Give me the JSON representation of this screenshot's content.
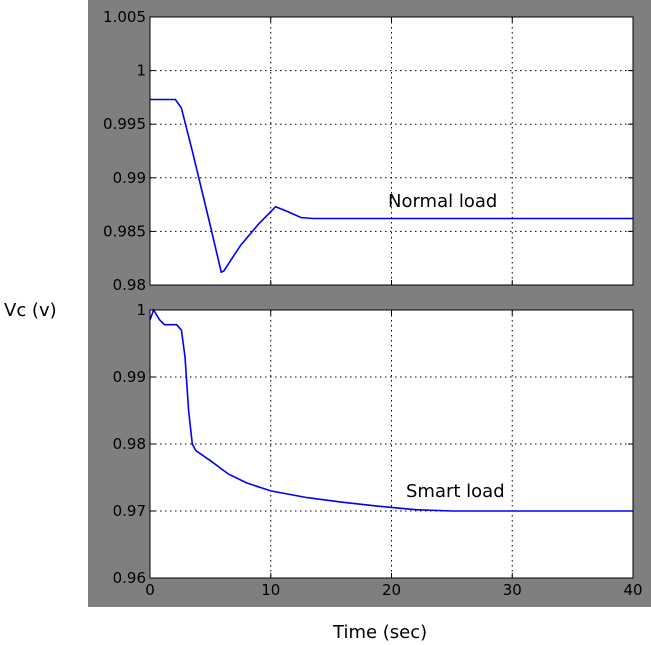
{
  "chart_data": {
    "type": "line",
    "grid": true,
    "ylabel": "Vc (v)",
    "xlabel": "Time (sec)",
    "line_color": "#0000ff",
    "panel_background": "#7f7f7f",
    "subplots": [
      {
        "name": "top",
        "annotation": "Normal load",
        "xlim": [
          0,
          40
        ],
        "ylim": [
          0.98,
          1.005
        ],
        "x_ticks": [
          0,
          10,
          20,
          30,
          40
        ],
        "y_ticks": [
          0.98,
          0.985,
          0.99,
          0.995,
          1,
          1.005
        ],
        "y_tick_labels": [
          "0.98",
          "0.985",
          "0.99",
          "0.995",
          "1",
          "1.005"
        ],
        "series": [
          {
            "x": [
              0,
              2.1,
              2.6,
              3.5,
              5.0,
              5.9,
              6.1,
              7.5,
              9.0,
              10.4,
              11.5,
              12.5,
              13.5,
              20,
              30,
              40
            ],
            "y": [
              0.9973,
              0.9973,
              0.9965,
              0.9925,
              0.9855,
              0.9812,
              0.9813,
              0.9837,
              0.9857,
              0.9873,
              0.9868,
              0.9863,
              0.9862,
              0.9862,
              0.9862,
              0.9862
            ]
          }
        ]
      },
      {
        "name": "bottom",
        "annotation": "Smart load",
        "xlim": [
          0,
          40
        ],
        "ylim": [
          0.96,
          1.0
        ],
        "x_ticks": [
          0,
          10,
          20,
          30,
          40
        ],
        "x_tick_labels": [
          "0",
          "10",
          "20",
          "30",
          "40"
        ],
        "y_ticks": [
          0.96,
          0.97,
          0.98,
          0.99,
          1.0
        ],
        "y_tick_labels": [
          "0.96",
          "0.97",
          "0.98",
          "0.99",
          "1"
        ],
        "series": [
          {
            "x": [
              0,
              0.3,
              0.8,
              1.2,
              2.2,
              2.6,
              2.9,
              3.2,
              3.5,
              3.8,
              5,
              6.5,
              8,
              10,
              13,
              16,
              19,
              22,
              25,
              30,
              40
            ],
            "y": [
              0.9985,
              1.0,
              0.9985,
              0.9978,
              0.9978,
              0.997,
              0.993,
              0.985,
              0.98,
              0.979,
              0.9775,
              0.9755,
              0.9742,
              0.973,
              0.972,
              0.9713,
              0.9707,
              0.9702,
              0.97,
              0.97,
              0.97
            ]
          }
        ]
      }
    ]
  }
}
